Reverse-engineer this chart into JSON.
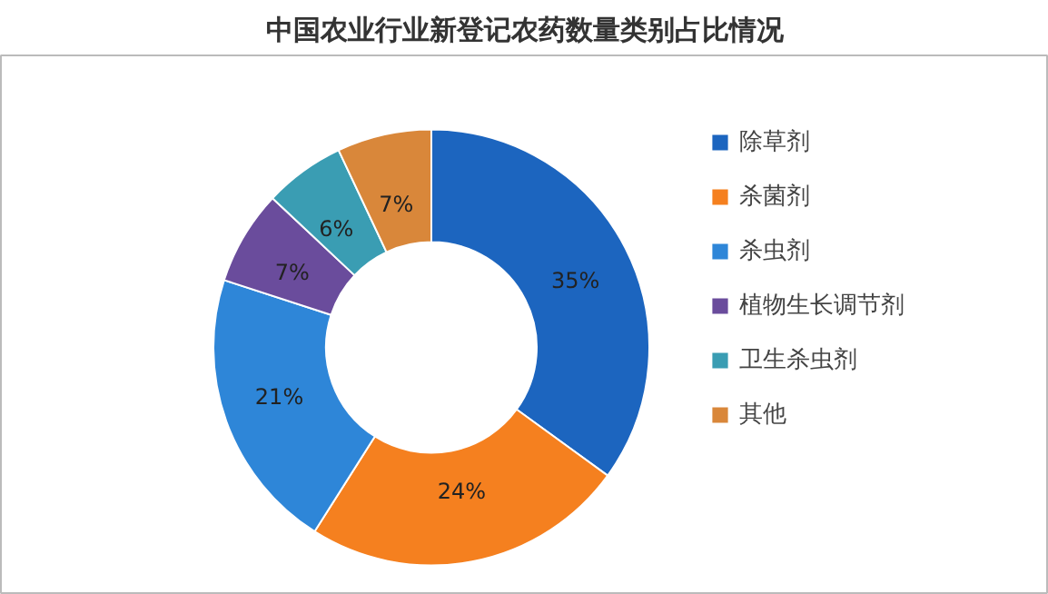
{
  "chart_data": {
    "type": "donut",
    "title": "中国农业行业新登记农药数量类别占比情况",
    "categories": [
      "除草剂",
      "杀菌剂",
      "杀虫剂",
      "植物生长调节剂",
      "卫生杀虫剂",
      "其他"
    ],
    "values": [
      35,
      24,
      21,
      7,
      6,
      7
    ],
    "value_labels": [
      "35%",
      "24%",
      "21%",
      "7%",
      "6%",
      "7%"
    ],
    "colors": [
      "#1c65bf",
      "#f5801f",
      "#2e86d8",
      "#6a4c9c",
      "#3a9db3",
      "#d9873a"
    ],
    "legend": "right"
  }
}
